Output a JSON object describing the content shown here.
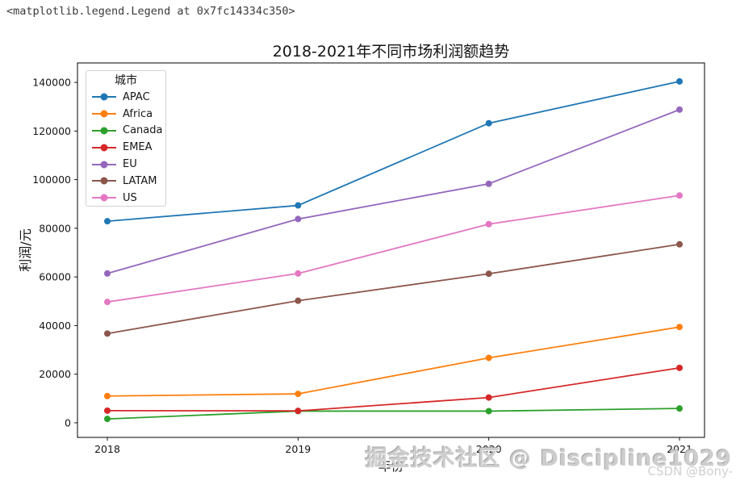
{
  "figure": {
    "repr_text": "<matplotlib.legend.Legend at 0x7fc14334c350>",
    "watermark_primary": "掘金技术社区 @ Discipline1029",
    "watermark_secondary": "CSDN @Bony-"
  },
  "chart_data": {
    "type": "line",
    "title": "2018-2021年不同市场利润额趋势",
    "xlabel": "年份",
    "ylabel": "利润/元",
    "legend_title": "城市",
    "legend_position": "upper left",
    "grid": false,
    "marker": "o",
    "x": [
      2018,
      2019,
      2020,
      2021
    ],
    "xtick_labels": [
      "2018",
      "2019",
      "2020",
      "2021"
    ],
    "yticks": [
      0,
      20000,
      40000,
      60000,
      80000,
      100000,
      120000,
      140000
    ],
    "ylim": [
      -6000,
      148000
    ],
    "series": [
      {
        "name": "APAC",
        "color": "#1f77b4",
        "values": [
          82900,
          89400,
          123200,
          140400
        ]
      },
      {
        "name": "Africa",
        "color": "#ff7f0e",
        "values": [
          11000,
          11900,
          26700,
          39400
        ]
      },
      {
        "name": "Canada",
        "color": "#2ca02c",
        "values": [
          1600,
          4800,
          4800,
          5900
        ]
      },
      {
        "name": "EMEA",
        "color": "#d62728",
        "values": [
          5000,
          4900,
          10400,
          22600
        ]
      },
      {
        "name": "EU",
        "color": "#9467bd",
        "values": [
          61400,
          83800,
          98300,
          128800
        ]
      },
      {
        "name": "LATAM",
        "color": "#8c564b",
        "values": [
          36700,
          50200,
          61300,
          73400
        ]
      },
      {
        "name": "US",
        "color": "#e377c2",
        "values": [
          49700,
          61400,
          81700,
          93500
        ]
      }
    ]
  }
}
